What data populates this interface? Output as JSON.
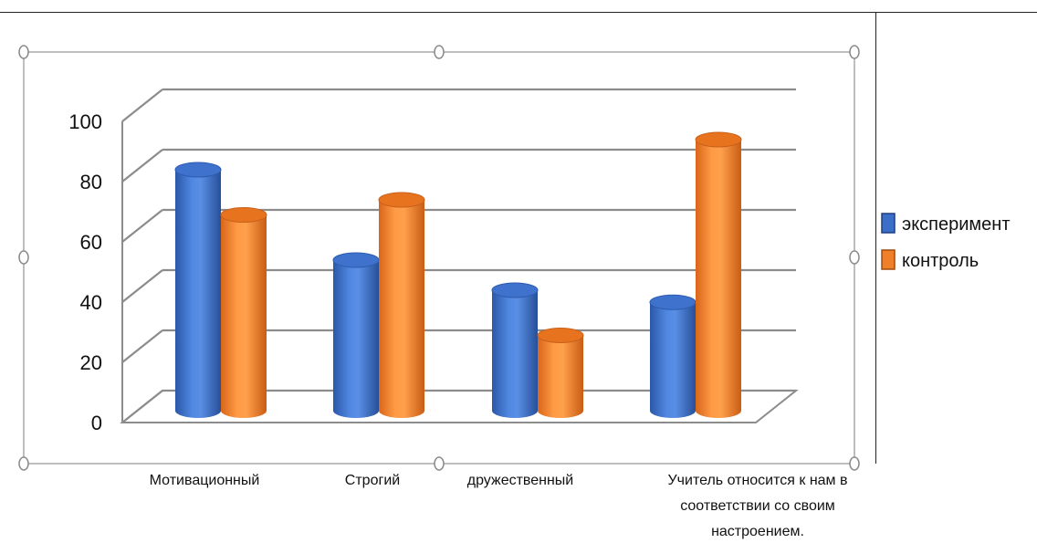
{
  "chart_data": {
    "type": "bar",
    "style": "3d-cylinder",
    "categories": [
      [
        "Мотивационный"
      ],
      [
        "Строгий"
      ],
      [
        "дружественный"
      ],
      [
        "Учитель относится к нам в",
        "соответствии со своим",
        "настроением."
      ]
    ],
    "series": [
      {
        "name": "эксперимент",
        "color": "#3a6ec9",
        "values": [
          80,
          50,
          40,
          36
        ]
      },
      {
        "name": "контроль",
        "color": "#f07f2a",
        "values": [
          65,
          70,
          25,
          90
        ]
      }
    ],
    "ylim": [
      0,
      100
    ],
    "yticks": [
      "0",
      "20",
      "40",
      "60",
      "80",
      "100"
    ],
    "ytick_values": [
      0,
      20,
      40,
      60,
      80,
      100
    ],
    "grid": true,
    "legend_position": "right"
  }
}
